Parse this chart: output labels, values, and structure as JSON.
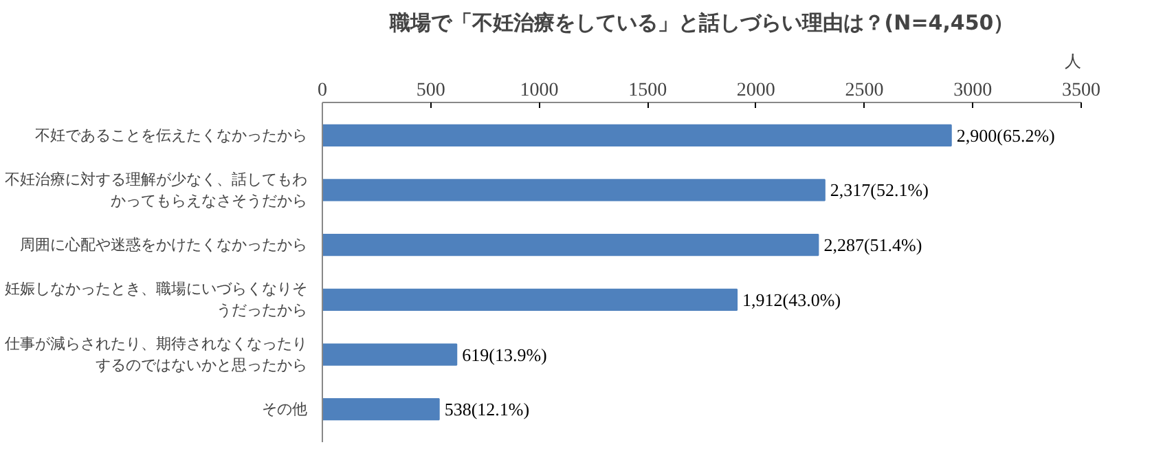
{
  "chart_data": {
    "type": "bar",
    "orientation": "horizontal",
    "title": "職場で「不妊治療をしている」と話しづらい理由は？(N=4,450）",
    "xlabel": "人",
    "categories": [
      "不妊であることを伝えたくなかったから",
      "不妊治療に対する理解が少なく、話してもわかってもらえなさそうだから",
      "周囲に心配や迷惑をかけたくなかったから",
      "妊娠しなかったとき、職場にいづらくなりそうだったから",
      "仕事が減らされたり、期待されなくなったりするのではないかと思ったから",
      "その他"
    ],
    "values": [
      2900,
      2317,
      2287,
      1912,
      619,
      538
    ],
    "value_labels": [
      "2,900(65.2%)",
      "2,317(52.1%)",
      "2,287(51.4%)",
      "1,912(43.0%)",
      "619(13.9%)",
      "538(12.1%)"
    ],
    "color": "#4f81bd",
    "xlim": [
      0,
      3500
    ],
    "xticks": [
      0,
      500,
      1000,
      1500,
      2000,
      2500,
      3000,
      3500
    ],
    "grid": false
  }
}
